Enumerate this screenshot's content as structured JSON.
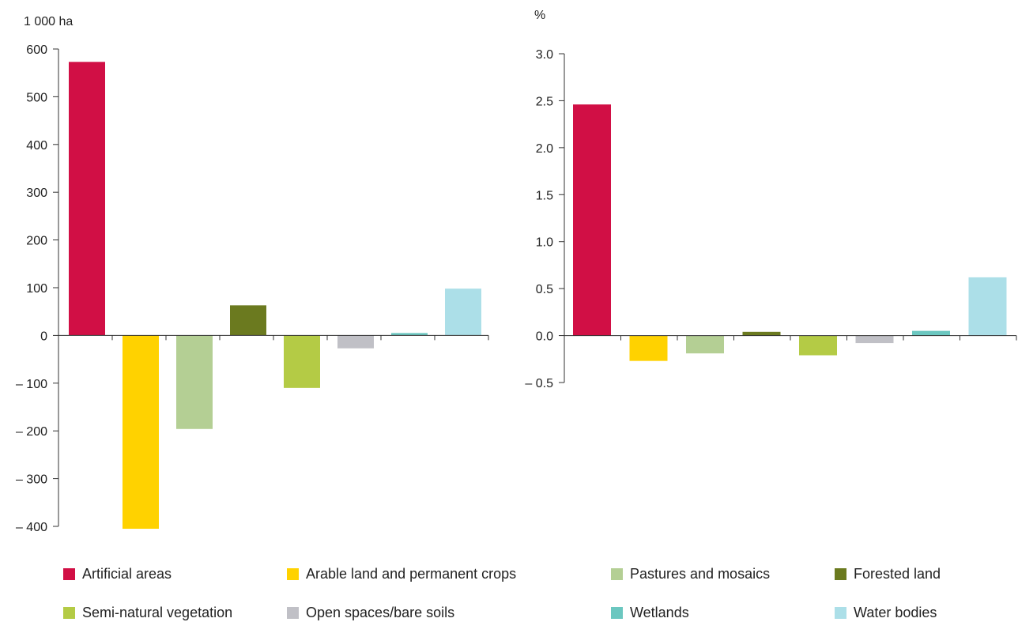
{
  "chart_data": [
    {
      "type": "bar",
      "ylabel": "1 000 ha",
      "ylim": [
        -400,
        600
      ],
      "yticks": [
        600,
        500,
        400,
        300,
        200,
        100,
        0,
        -100,
        -200,
        -300,
        -400
      ],
      "ytick_labels": [
        "600",
        "500",
        "400",
        "300",
        "200",
        "100",
        "0",
        "– 100",
        "– 200",
        "– 300",
        "– 400"
      ],
      "categories": [
        "Artificial areas",
        "Arable land and permanent crops",
        "Pastures and mosaics",
        "Forested land",
        "Semi-natural vegetation",
        "Open spaces/bare soils",
        "Wetlands",
        "Water bodies"
      ],
      "values": [
        573,
        -405,
        -196,
        63,
        -110,
        -27,
        5,
        98
      ],
      "grid": false
    },
    {
      "type": "bar",
      "ylabel": "%",
      "ylim": [
        -0.5,
        3.0
      ],
      "yticks": [
        3.0,
        2.5,
        2.0,
        1.5,
        1.0,
        0.5,
        0.0,
        -0.5
      ],
      "ytick_labels": [
        "3.0",
        "2.5",
        "2.0",
        "1.5",
        "1.0",
        "0.5",
        "0.0",
        "– 0.5"
      ],
      "categories": [
        "Artificial areas",
        "Arable land and permanent crops",
        "Pastures and mosaics",
        "Forested land",
        "Semi-natural vegetation",
        "Open spaces/bare soils",
        "Wetlands",
        "Water bodies"
      ],
      "values": [
        2.46,
        -0.27,
        -0.19,
        0.04,
        -0.21,
        -0.08,
        0.05,
        0.62
      ],
      "grid": false
    }
  ],
  "legend": {
    "placement": "bottom",
    "items": [
      {
        "label": "Artificial areas",
        "color": "#d10f45"
      },
      {
        "label": "Arable land and permanent crops",
        "color": "#ffd200"
      },
      {
        "label": "Pastures and mosaics",
        "color": "#b4cf94"
      },
      {
        "label": "Forested land",
        "color": "#6b7a1f"
      },
      {
        "label": "Semi-natural vegetation",
        "color": "#b4cb45"
      },
      {
        "label": "Open spaces/bare soils",
        "color": "#c0c0c6"
      },
      {
        "label": "Wetlands",
        "color": "#6bc7c0"
      },
      {
        "label": "Water bodies",
        "color": "#acdfe8"
      }
    ]
  }
}
